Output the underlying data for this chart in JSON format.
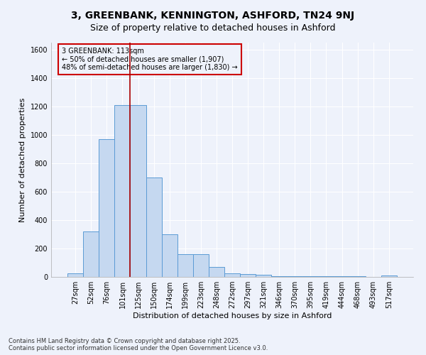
{
  "title": "3, GREENBANK, KENNINGTON, ASHFORD, TN24 9NJ",
  "subtitle": "Size of property relative to detached houses in Ashford",
  "xlabel": "Distribution of detached houses by size in Ashford",
  "ylabel": "Number of detached properties",
  "categories": [
    "27sqm",
    "52sqm",
    "76sqm",
    "101sqm",
    "125sqm",
    "150sqm",
    "174sqm",
    "199sqm",
    "223sqm",
    "248sqm",
    "272sqm",
    "297sqm",
    "321sqm",
    "346sqm",
    "370sqm",
    "395sqm",
    "419sqm",
    "444sqm",
    "468sqm",
    "493sqm",
    "517sqm"
  ],
  "values": [
    25,
    320,
    970,
    1210,
    1210,
    700,
    300,
    160,
    160,
    70,
    25,
    20,
    15,
    5,
    5,
    5,
    3,
    3,
    3,
    2,
    12
  ],
  "bar_color": "#c5d8f0",
  "bar_edge_color": "#5b9bd5",
  "background_color": "#eef2fb",
  "grid_color": "#ffffff",
  "annotation_box_color": "#cc0000",
  "vline_color": "#aa0000",
  "vline_x_idx": 3.5,
  "annotation_text": "3 GREENBANK: 113sqm\n← 50% of detached houses are smaller (1,907)\n48% of semi-detached houses are larger (1,830) →",
  "footer": "Contains HM Land Registry data © Crown copyright and database right 2025.\nContains public sector information licensed under the Open Government Licence v3.0.",
  "ylim": [
    0,
    1650
  ],
  "yticks": [
    0,
    200,
    400,
    600,
    800,
    1000,
    1200,
    1400,
    1600
  ],
  "title_fontsize": 10,
  "xlabel_fontsize": 8,
  "ylabel_fontsize": 8,
  "tick_fontsize": 7,
  "annotation_fontsize": 7,
  "footer_fontsize": 6
}
